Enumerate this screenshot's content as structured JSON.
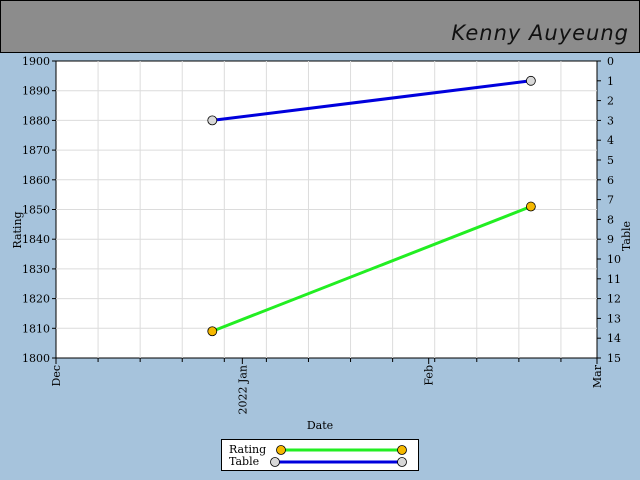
{
  "header": {
    "title": "Kenny Auyeung"
  },
  "chart_data": {
    "type": "line",
    "xlabel": "Date",
    "ylabel": "Rating",
    "y2label": "Table",
    "x_ticks": [
      "Dec",
      "2022 Jan",
      "Feb",
      "Mar"
    ],
    "x_range": [
      "2021-12-01",
      "2022-03-01"
    ],
    "ylim": [
      1800,
      1900
    ],
    "y_ticks": [
      1800,
      1810,
      1820,
      1830,
      1840,
      1850,
      1860,
      1870,
      1880,
      1890,
      1900
    ],
    "y2lim": [
      0,
      15
    ],
    "y2_reversed": true,
    "y2_ticks": [
      0,
      1,
      2,
      3,
      4,
      5,
      6,
      7,
      8,
      9,
      10,
      11,
      12,
      13,
      14,
      15
    ],
    "grid": true,
    "legend_position": "bottom-center",
    "series": [
      {
        "name": "Rating",
        "axis": "left",
        "color": "#22ee22",
        "marker_color": "#f5b800",
        "points": [
          {
            "x": "2021-12-27",
            "y": 1809
          },
          {
            "x": "2022-02-18",
            "y": 1851
          }
        ]
      },
      {
        "name": "Table",
        "axis": "right",
        "color": "#0000dd",
        "marker_color": "#d8d8d8",
        "points": [
          {
            "x": "2021-12-27",
            "y": 3
          },
          {
            "x": "2022-02-18",
            "y": 1
          }
        ]
      }
    ]
  }
}
